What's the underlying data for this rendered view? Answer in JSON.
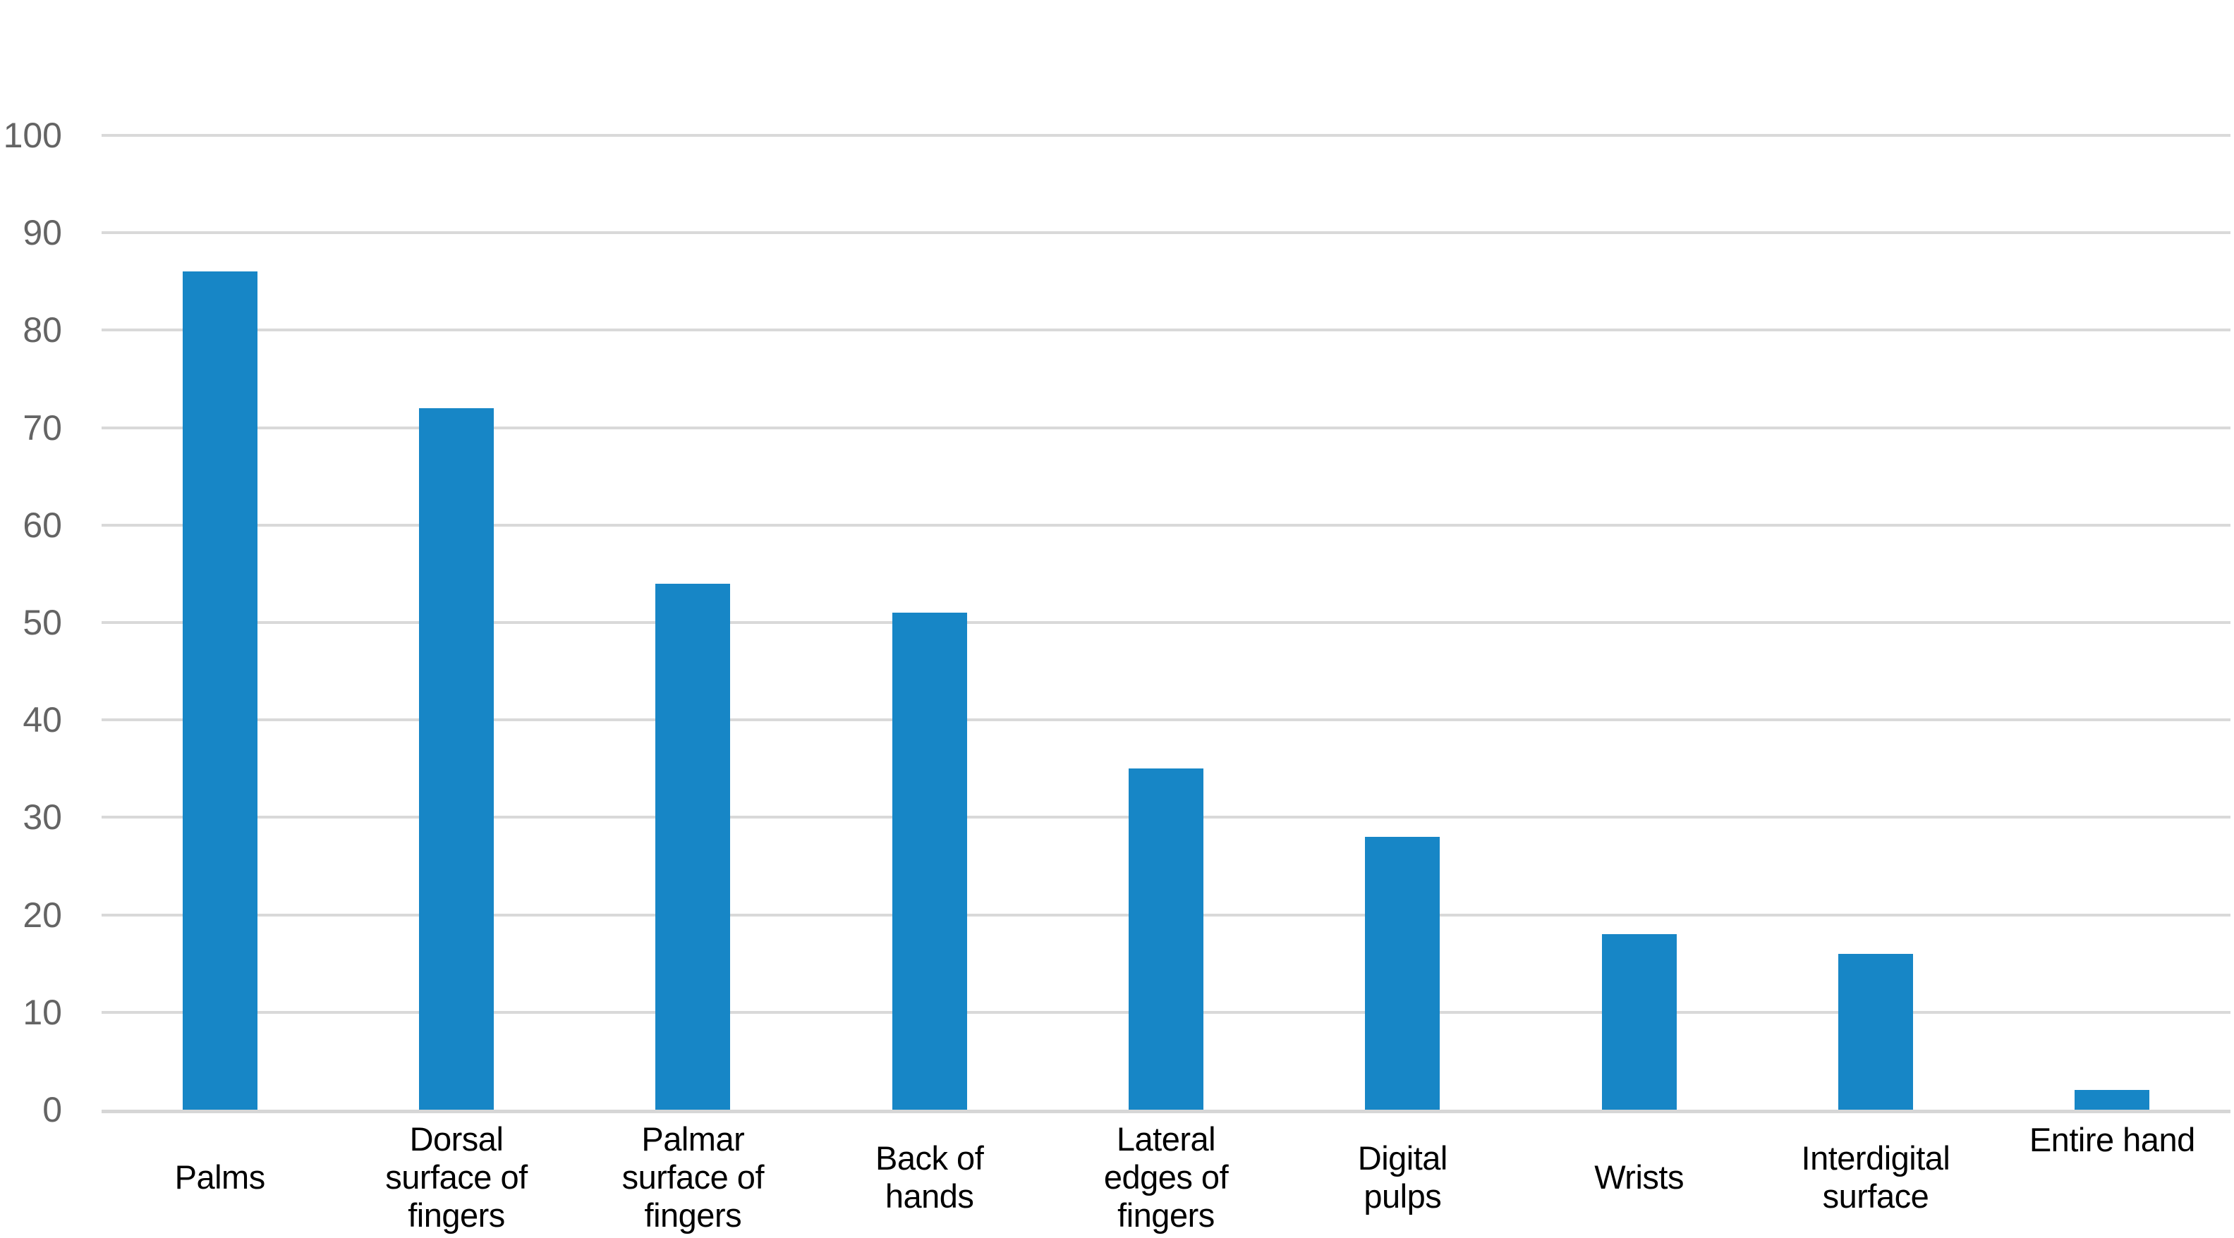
{
  "chart_data": {
    "type": "bar",
    "title": "",
    "xlabel": "",
    "ylabel": "",
    "categories": [
      "Palms",
      "Dorsal surface of fingers",
      "Palmar surface of fingers",
      "Back of hands",
      "Lateral edges of fingers",
      "Digital pulps",
      "Wrists",
      "Interdigital surface",
      "Entire hand"
    ],
    "categories_wrapped": [
      [
        "Palms"
      ],
      [
        "Dorsal",
        "surface of",
        "fingers"
      ],
      [
        "Palmar",
        "surface of",
        "fingers"
      ],
      [
        "Back of",
        "hands"
      ],
      [
        "Lateral",
        "edges of",
        "fingers"
      ],
      [
        "Digital",
        "pulps"
      ],
      [
        "Wrists"
      ],
      [
        "Interdigital",
        "surface"
      ],
      [
        "Entire hand"
      ]
    ],
    "values": [
      86,
      72,
      54,
      51,
      35,
      28,
      18,
      16,
      2
    ],
    "ylim": [
      0,
      100
    ],
    "ytick_step": 10,
    "ytick_labels": [
      "0",
      "10",
      "20",
      "30",
      "40",
      "50",
      "60",
      "70",
      "80",
      "90",
      "100"
    ],
    "grid": true,
    "legend": "none",
    "bar_color": "#1786C6",
    "gridline_color": "#D9D9D9",
    "zero_line_color": "#D6D6D6",
    "ytick_color": "#646464",
    "category_label_color": "#000000",
    "background_color": "#FFFFFF"
  }
}
